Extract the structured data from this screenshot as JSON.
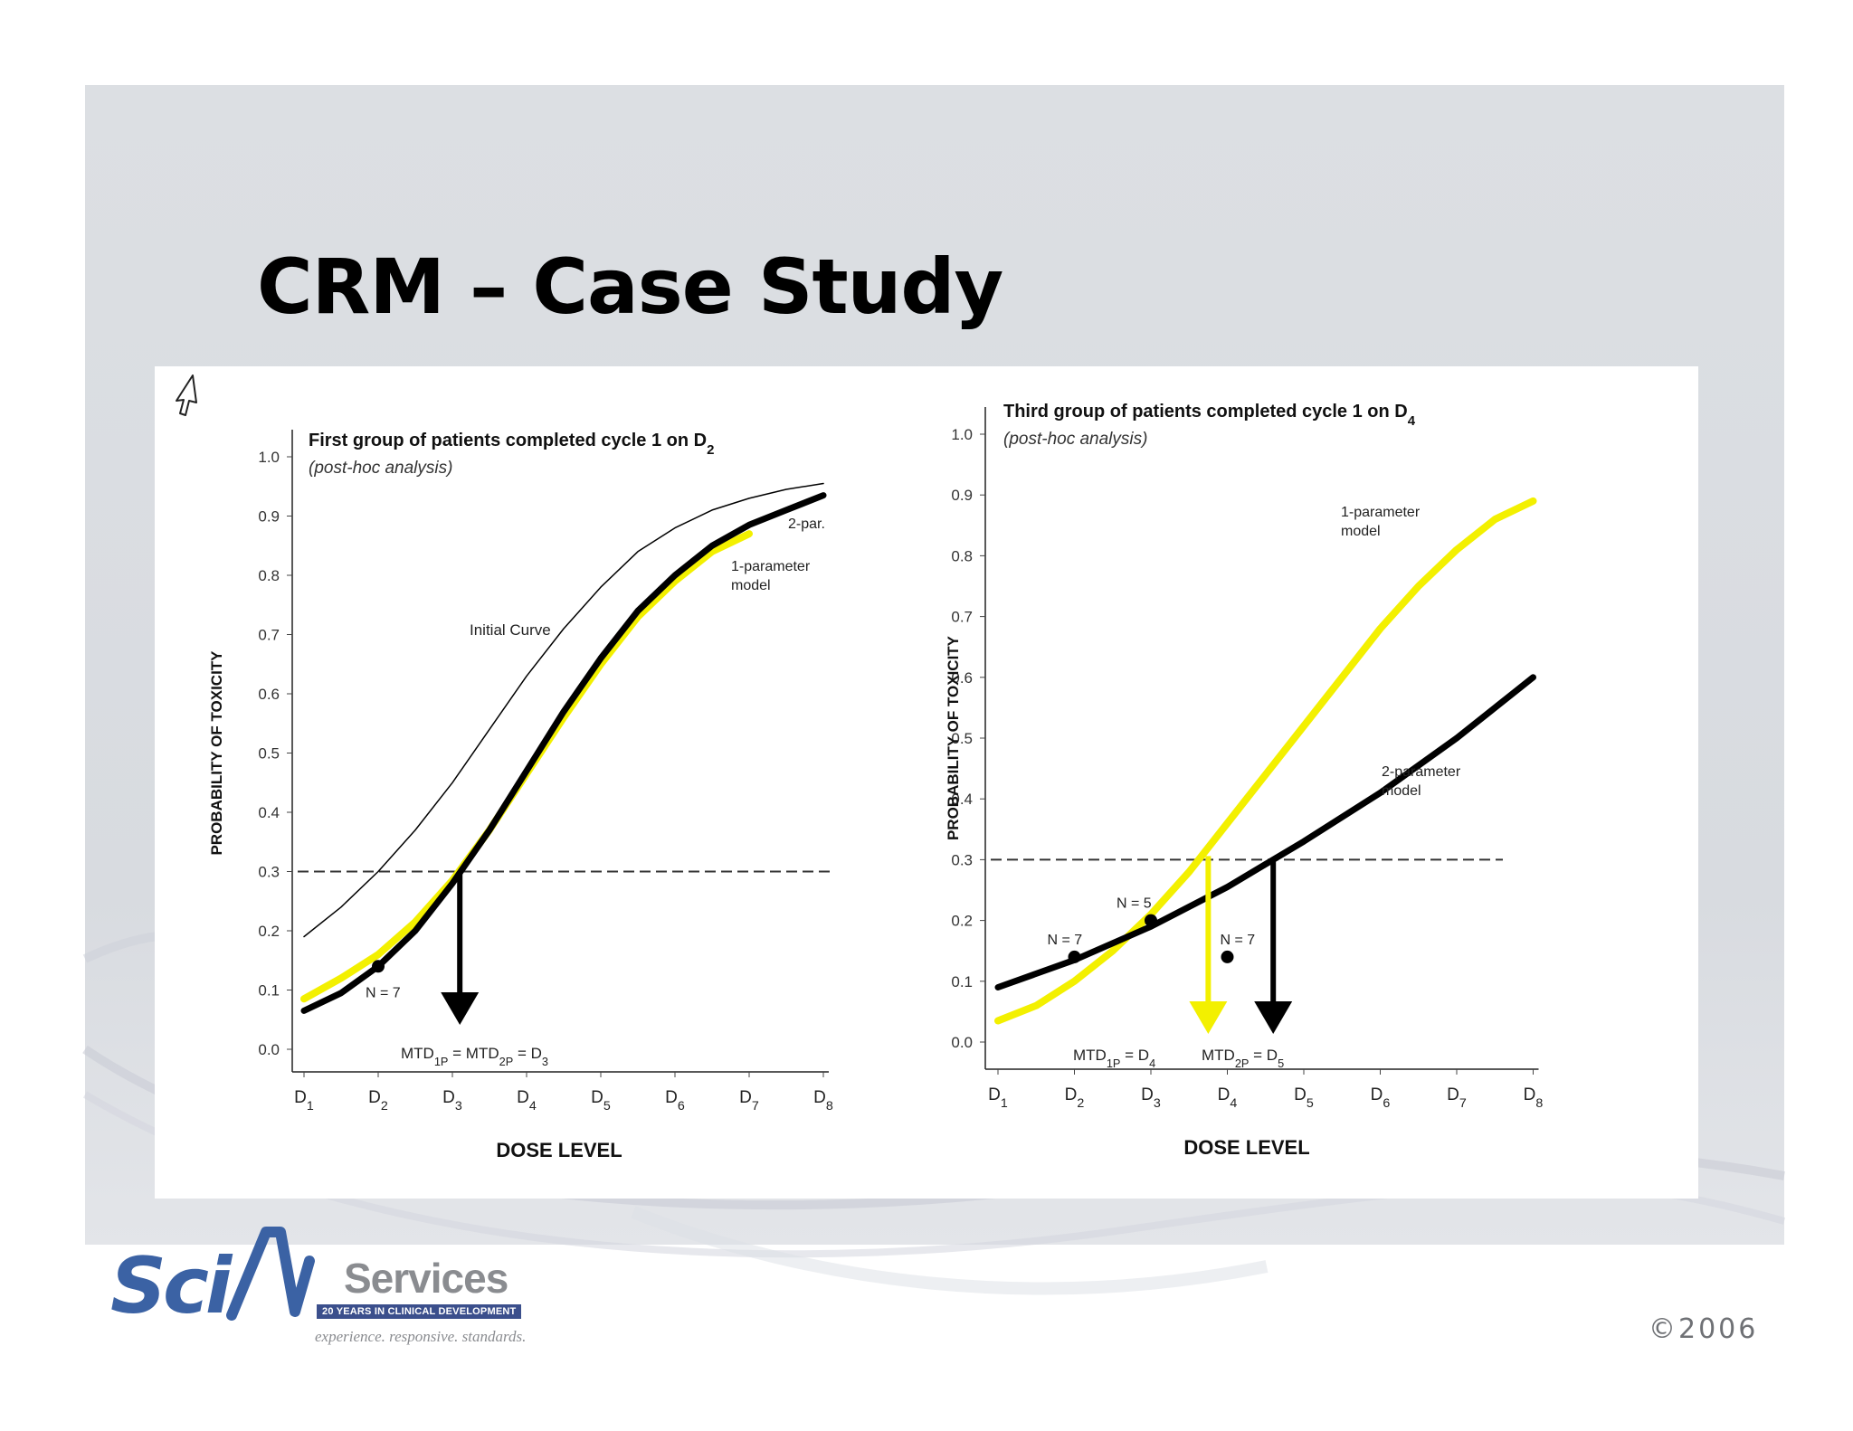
{
  "slide": {
    "title": "CRM – Case Study",
    "copyright": "©2006",
    "colors": {
      "band": "#dcdfe3",
      "yellow": "#f3f000",
      "black": "#000000"
    }
  },
  "logo": {
    "sci": "Sci",
    "services": "Services",
    "years": "20 YEARS IN CLINICAL DEVELOPMENT",
    "tagline": "experience. responsive. standards."
  },
  "chart_data": [
    {
      "type": "line",
      "title": "First group of patients completed cycle 1 on D",
      "title_sub": "2",
      "subtitle": "(post-hoc analysis)",
      "ylabel": "PROBABILITY OF TOXICITY",
      "xlabel": "DOSE LEVEL",
      "ylim": [
        0,
        1
      ],
      "yticks": [
        "0.0",
        "0.1",
        "0.2",
        "0.3",
        "0.4",
        "0.5",
        "0.6",
        "0.7",
        "0.8",
        "0.9",
        "1.0"
      ],
      "categories": [
        "1",
        "2",
        "3",
        "4",
        "5",
        "6",
        "7",
        "8"
      ],
      "category_prefix": "D",
      "target_line": 0.3,
      "series": [
        {
          "name": "Initial Curve",
          "color": "#000000",
          "style": "thin",
          "x": [
            1,
            1.5,
            2,
            2.5,
            3,
            3.5,
            4,
            4.5,
            5,
            5.5,
            6,
            6.5,
            7,
            7.5,
            8
          ],
          "y": [
            0.19,
            0.24,
            0.3,
            0.37,
            0.45,
            0.54,
            0.63,
            0.71,
            0.78,
            0.84,
            0.88,
            0.91,
            0.93,
            0.945,
            0.955
          ]
        },
        {
          "name": "1-parameter model",
          "color": "#f3f000",
          "style": "thick",
          "x": [
            1,
            1.5,
            2,
            2.5,
            3,
            3.5,
            4,
            4.5,
            5,
            5.5,
            6,
            6.5,
            7
          ],
          "y": [
            0.085,
            0.12,
            0.16,
            0.215,
            0.285,
            0.37,
            0.465,
            0.56,
            0.65,
            0.73,
            0.79,
            0.84,
            0.87
          ]
        },
        {
          "name": "2-par.",
          "color": "#000000",
          "style": "thick",
          "x": [
            1,
            1.5,
            2,
            2.5,
            3,
            3.5,
            4,
            4.5,
            5,
            5.5,
            6,
            6.5,
            7,
            7.5,
            8
          ],
          "y": [
            0.065,
            0.095,
            0.14,
            0.2,
            0.28,
            0.37,
            0.47,
            0.57,
            0.66,
            0.74,
            0.8,
            0.85,
            0.885,
            0.91,
            0.935
          ]
        }
      ],
      "points": [
        {
          "x": 2,
          "y": 0.14,
          "label": "N = 7"
        }
      ],
      "arrows": [
        {
          "x": 3.1,
          "color": "#000000"
        }
      ],
      "annotation": {
        "text": "MTD1P = MTD2P = D3"
      }
    },
    {
      "type": "line",
      "title": "Third  group of patients completed cycle 1 on D",
      "title_sub": "4",
      "subtitle": "(post-hoc analysis)",
      "ylabel": "PROBABILITY OF TOXICITY",
      "xlabel": "DOSE LEVEL",
      "ylim": [
        0,
        1
      ],
      "yticks": [
        "0.0",
        "0.1",
        "0.2",
        "0.3",
        "0.4",
        "0.5",
        "0.6",
        "0.7",
        "0.8",
        "0.9",
        "1.0"
      ],
      "categories": [
        "1",
        "2",
        "3",
        "4",
        "5",
        "6",
        "7",
        "8"
      ],
      "category_prefix": "D",
      "target_line": 0.3,
      "series": [
        {
          "name": "1-parameter model",
          "color": "#f3f000",
          "style": "thick",
          "x": [
            1,
            1.5,
            2,
            2.5,
            3,
            3.5,
            4,
            4.5,
            5,
            5.5,
            6,
            6.5,
            7,
            7.5,
            8
          ],
          "y": [
            0.035,
            0.06,
            0.1,
            0.15,
            0.21,
            0.28,
            0.36,
            0.44,
            0.52,
            0.6,
            0.68,
            0.75,
            0.81,
            0.86,
            0.89
          ]
        },
        {
          "name": "2-parameter model",
          "color": "#000000",
          "style": "thick",
          "x": [
            1,
            2,
            3,
            4,
            5,
            6,
            7,
            8
          ],
          "y": [
            0.09,
            0.135,
            0.19,
            0.255,
            0.33,
            0.41,
            0.5,
            0.6
          ]
        }
      ],
      "points": [
        {
          "x": 2,
          "y": 0.14,
          "label": "N = 7"
        },
        {
          "x": 3,
          "y": 0.2,
          "label": "N = 5"
        },
        {
          "x": 4,
          "y": 0.14,
          "label": "N = 7"
        }
      ],
      "arrows": [
        {
          "x": 3.75,
          "color": "#f3f000"
        },
        {
          "x": 4.6,
          "color": "#000000"
        }
      ],
      "annotation": {
        "text1": "MTD1P = D4",
        "text2": "MTD2P = D5"
      }
    }
  ]
}
